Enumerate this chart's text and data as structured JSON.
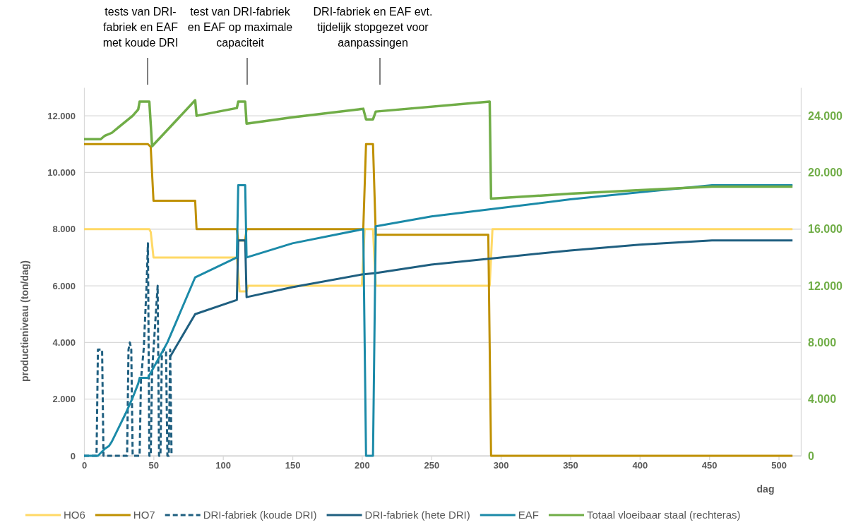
{
  "chart_data": {
    "type": "line",
    "xlabel": "dag",
    "ylabel": "productieniveau (ton/dag)",
    "xlim": [
      0,
      516
    ],
    "xticks": [
      0,
      50,
      100,
      150,
      200,
      250,
      300,
      350,
      400,
      450,
      500
    ],
    "ylim": [
      0,
      13000
    ],
    "yticks": [
      {
        "value": 0,
        "label": "0"
      },
      {
        "value": 2000,
        "label": "2.000"
      },
      {
        "value": 4000,
        "label": "4.000"
      },
      {
        "value": 6000,
        "label": "6.000"
      },
      {
        "value": 8000,
        "label": "8.000"
      },
      {
        "value": 10000,
        "label": "10.000"
      },
      {
        "value": 12000,
        "label": "12.000"
      }
    ],
    "y2lim": [
      0,
      26000
    ],
    "y2ticks": [
      {
        "value": 0,
        "label": "0"
      },
      {
        "value": 4000,
        "label": "4.000"
      },
      {
        "value": 8000,
        "label": "8.000"
      },
      {
        "value": 12000,
        "label": "12.000"
      },
      {
        "value": 16000,
        "label": "16.000"
      },
      {
        "value": 20000,
        "label": "20.000"
      },
      {
        "value": 24000,
        "label": "24.000"
      }
    ],
    "grid": "y",
    "legend": "bottom",
    "marker": "none",
    "annotations": [
      "tests van DRI-\nfabriek en EAF\nmet koude DRI",
      "test van DRI-fabriek\nen EAF op maximale\ncapaciteit",
      "DRI-fabriek en EAF evt.\ntijdelijk stopgezet voor\naanpassingen"
    ],
    "series": [
      {
        "name": "HO6",
        "color": "#ffd966",
        "x": [
          0,
          47,
          48,
          50,
          110,
          112,
          117,
          118,
          200,
          202,
          208,
          210,
          292,
          294,
          510
        ],
        "values": [
          8000,
          8000,
          7900,
          7000,
          7000,
          5800,
          5800,
          6000,
          6000,
          8000,
          8000,
          6000,
          6000,
          8000,
          8000
        ]
      },
      {
        "name": "HO7",
        "color": "#bf9000",
        "x": [
          0,
          46,
          48,
          50,
          80,
          81,
          110,
          111,
          116,
          117,
          201,
          203,
          208,
          210,
          291,
          293,
          510
        ],
        "values": [
          11000,
          11000,
          10900,
          9000,
          9000,
          8000,
          8000,
          7600,
          7600,
          8000,
          8000,
          11000,
          11000,
          7800,
          7800,
          0,
          0
        ]
      },
      {
        "name": "DRI-fabriek (koude DRI)",
        "color": "#1f5f80",
        "line_style": "dashed",
        "x": [
          0,
          9,
          10,
          13,
          14,
          31,
          32,
          33,
          34,
          35,
          40,
          41,
          43,
          45,
          46,
          47,
          48,
          49,
          51,
          53,
          54,
          55,
          56,
          57,
          59,
          60,
          61,
          62,
          63
        ],
        "values": [
          0,
          0,
          3750,
          3750,
          0,
          0,
          3750,
          4000,
          3750,
          0,
          0,
          2700,
          3800,
          6000,
          7500,
          0,
          0,
          3000,
          4500,
          6000,
          0,
          0,
          3500,
          3750,
          3750,
          0,
          0,
          3750,
          0
        ]
      },
      {
        "name": "DRI-fabriek (hete DRI)",
        "color": "#1f5f80",
        "x": [
          62,
          80,
          110,
          111,
          116,
          117,
          150,
          200,
          210,
          250,
          300,
          350,
          400,
          452,
          510
        ],
        "values": [
          3500,
          5000,
          5500,
          7600,
          7600,
          5600,
          5950,
          6400,
          6450,
          6750,
          7000,
          7250,
          7450,
          7600,
          7600
        ]
      },
      {
        "name": "EAF",
        "color": "#1b8aa8",
        "x": [
          0,
          10,
          12,
          15,
          18,
          20,
          25,
          30,
          35,
          39,
          40,
          46,
          60,
          80,
          110,
          111,
          116,
          117,
          150,
          201,
          203,
          208,
          210,
          250,
          300,
          350,
          400,
          452,
          510
        ],
        "values": [
          0,
          0,
          100,
          250,
          350,
          500,
          1000,
          1500,
          2050,
          2550,
          2750,
          2750,
          4000,
          6300,
          7000,
          9550,
          9550,
          7000,
          7500,
          8000,
          0,
          0,
          8100,
          8450,
          8750,
          9050,
          9300,
          9550,
          9550
        ]
      },
      {
        "name": "Totaal vloeibaar staal (rechteras)",
        "color": "#70ad47",
        "axis": "y2",
        "x": [
          0,
          12,
          15,
          20,
          25,
          30,
          35,
          39,
          40,
          47,
          49,
          80,
          81,
          110,
          111,
          116,
          117,
          150,
          201,
          203,
          208,
          210,
          292,
          293,
          350,
          400,
          452,
          510
        ],
        "values": [
          22350,
          22350,
          22600,
          22800,
          23200,
          23600,
          24000,
          24450,
          25000,
          25000,
          21850,
          25100,
          24000,
          24550,
          25000,
          25000,
          23450,
          23900,
          24500,
          23750,
          23750,
          24300,
          25000,
          18150,
          18500,
          18750,
          19000,
          19000
        ]
      }
    ]
  }
}
